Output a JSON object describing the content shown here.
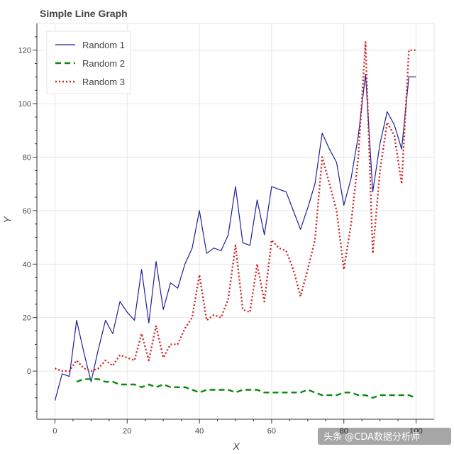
{
  "chart_data": {
    "type": "line",
    "title": "Simple Line Graph",
    "xlabel": "X",
    "ylabel": "Y",
    "xlim": [
      -5,
      105
    ],
    "ylim": [
      -18,
      130
    ],
    "x_ticks": [
      0,
      20,
      40,
      60,
      80,
      100
    ],
    "y_ticks": [
      0,
      20,
      40,
      60,
      80,
      100,
      120
    ],
    "grid": true,
    "legend_position": "top-left",
    "series": [
      {
        "name": "Random 1",
        "color": "#1f1f9a",
        "style": "solid",
        "x": [
          0,
          2,
          4,
          6,
          8,
          10,
          12,
          14,
          16,
          18,
          20,
          22,
          24,
          26,
          28,
          30,
          32,
          34,
          36,
          38,
          40,
          42,
          44,
          46,
          48,
          50,
          52,
          54,
          56,
          58,
          60,
          62,
          64,
          66,
          68,
          70,
          72,
          74,
          76,
          78,
          80,
          82,
          84,
          86,
          88,
          90,
          92,
          94,
          96,
          98,
          100
        ],
        "y": [
          -11,
          -1,
          -2,
          19,
          7,
          -4,
          8,
          19,
          14,
          26,
          22,
          19,
          38,
          18,
          41,
          23,
          33,
          31,
          40,
          46,
          60,
          44,
          46,
          45,
          51,
          69,
          48,
          47,
          64,
          51,
          69,
          68,
          67,
          60,
          53,
          61,
          70,
          89,
          83,
          78,
          62,
          72,
          88,
          111,
          67,
          85,
          97,
          92,
          83,
          110,
          110
        ]
      },
      {
        "name": "Random 2",
        "color": "#0a8a0a",
        "style": "dashed",
        "x": [
          6,
          8,
          10,
          12,
          14,
          16,
          18,
          20,
          22,
          24,
          26,
          28,
          30,
          32,
          34,
          36,
          38,
          40,
          42,
          44,
          46,
          48,
          50,
          52,
          54,
          56,
          58,
          60,
          62,
          64,
          66,
          68,
          70,
          72,
          74,
          76,
          78,
          80,
          82,
          84,
          86,
          88,
          90,
          92,
          94,
          96,
          98,
          100
        ],
        "y": [
          -4,
          -3,
          -3,
          -3,
          -4,
          -4,
          -5,
          -5,
          -5,
          -6,
          -5,
          -6,
          -5,
          -6,
          -6,
          -6,
          -7,
          -8,
          -7,
          -7,
          -7,
          -7,
          -8,
          -7,
          -7,
          -7,
          -8,
          -8,
          -8,
          -8,
          -8,
          -8,
          -7,
          -8,
          -9,
          -9,
          -9,
          -8,
          -8,
          -9,
          -9,
          -10,
          -9,
          -9,
          -9,
          -9,
          -9,
          -10
        ]
      },
      {
        "name": "Random 3",
        "color": "#d42020",
        "style": "dotted",
        "x": [
          0,
          2,
          4,
          6,
          8,
          10,
          12,
          14,
          16,
          18,
          20,
          22,
          24,
          26,
          28,
          30,
          32,
          34,
          36,
          38,
          40,
          42,
          44,
          46,
          48,
          50,
          52,
          54,
          56,
          58,
          60,
          62,
          64,
          66,
          68,
          70,
          72,
          74,
          76,
          78,
          80,
          82,
          84,
          86,
          88,
          90,
          92,
          94,
          96,
          98,
          100
        ],
        "y": [
          1,
          0,
          0,
          4,
          1,
          0,
          1,
          4,
          2,
          6,
          5,
          4,
          14,
          4,
          17,
          5,
          10,
          10,
          16,
          20,
          36,
          19,
          21,
          20,
          27,
          47,
          23,
          22,
          40,
          26,
          49,
          46,
          45,
          38,
          28,
          38,
          49,
          80,
          70,
          60,
          38,
          55,
          80,
          123,
          44,
          75,
          93,
          88,
          70,
          120,
          120
        ]
      }
    ]
  },
  "watermark": "头条 @CDA数据分析师"
}
